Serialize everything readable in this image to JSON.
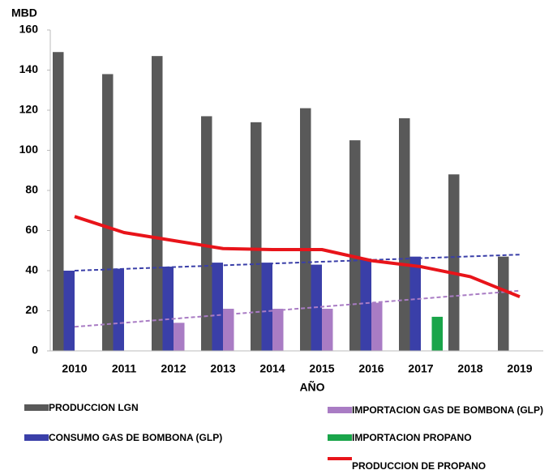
{
  "chart_data": {
    "type": "bar",
    "y_label": "MBD",
    "x_label": "AÑO",
    "categories": [
      "2010",
      "2011",
      "2012",
      "2013",
      "2014",
      "2015",
      "2016",
      "2017",
      "2018",
      "2019"
    ],
    "ylim": [
      0,
      160
    ],
    "yticks": [
      0,
      20,
      40,
      60,
      80,
      100,
      120,
      140,
      160
    ],
    "series": [
      {
        "name": "PRODUCCION LGN",
        "color": "#595959",
        "values": [
          149,
          138,
          147,
          117,
          114,
          121,
          105,
          116,
          88,
          47
        ]
      },
      {
        "name": "CONSUMO GAS DE BOMBONA (GLP)",
        "color": "#3a3fa8",
        "values": [
          40,
          41,
          42,
          44,
          44,
          43,
          46,
          47,
          null,
          null
        ]
      },
      {
        "name": "IMPORTACION GAS DE BOMBONA (GLP)",
        "color": "#a97cc4",
        "values": [
          null,
          null,
          14,
          21,
          21,
          21,
          24,
          null,
          null,
          null
        ]
      },
      {
        "name": "IMPORTACION PROPANO",
        "color": "#1aa54a",
        "values": [
          null,
          null,
          null,
          null,
          null,
          null,
          null,
          17,
          null,
          null
        ]
      },
      {
        "name": "PRODUCCION DE PROPANO",
        "color": "#e8141a",
        "type": "line",
        "values": [
          67,
          59,
          55,
          51,
          50.5,
          50.5,
          45,
          42,
          37,
          27
        ]
      }
    ],
    "trend_lines": [
      {
        "color": "#3a3fa8",
        "values": [
          40,
          48
        ]
      },
      {
        "color": "#a97cc4",
        "values": [
          12,
          30
        ]
      }
    ]
  }
}
